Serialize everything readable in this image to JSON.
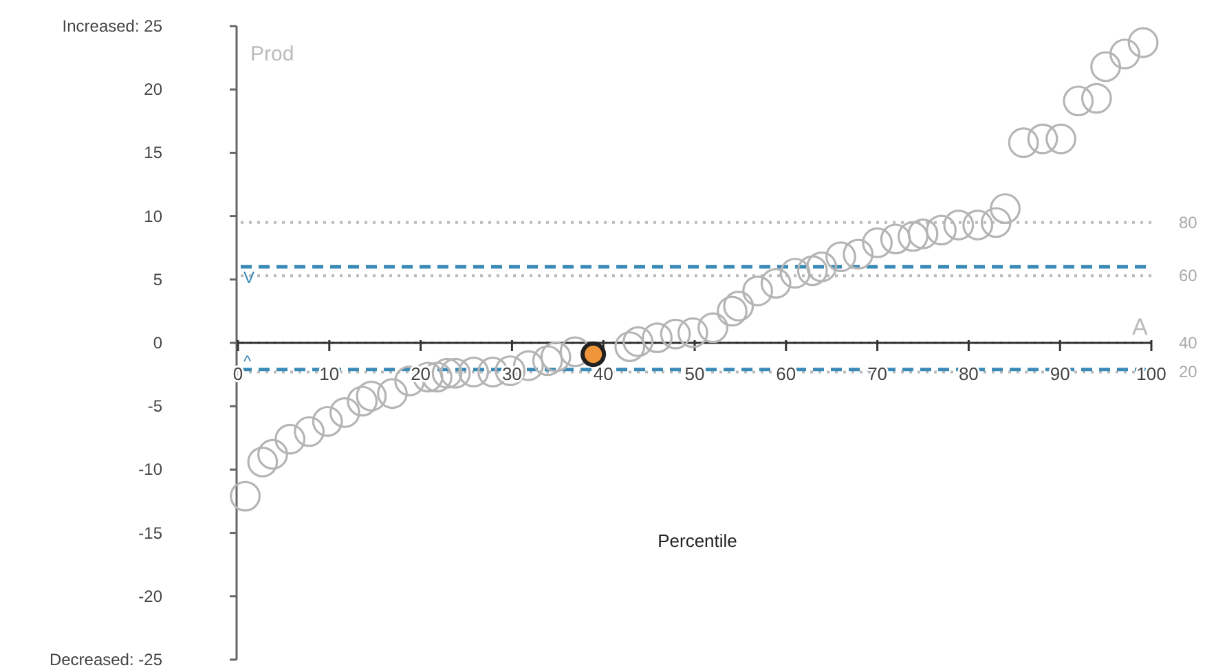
{
  "chart_data": {
    "type": "scatter",
    "xlabel": "Percentile",
    "annotations": [
      "Prod",
      "A",
      "80",
      "60",
      "40",
      "20"
    ],
    "xlim": [
      0,
      100
    ],
    "ylim": [
      -25,
      25
    ],
    "xticks": [
      0,
      10,
      20,
      30,
      40,
      50,
      60,
      70,
      80,
      90,
      100
    ],
    "yticks": [
      {
        "value": 25,
        "label": "Increased: 25"
      },
      20,
      15,
      10,
      5,
      0,
      -5,
      -10,
      -15,
      -20,
      {
        "value": -25,
        "label": "Decreased: -25"
      }
    ],
    "marker": "circle",
    "grid": false,
    "series": [
      {
        "color": "#b5b5b5",
        "x": [
          0.8,
          2.7,
          3.8,
          5.7,
          7.8,
          9.8,
          11.7,
          13.6,
          14.6,
          16.9,
          18.8,
          20.8,
          21.8,
          22.9,
          23.8,
          25.8,
          27.9,
          29.8,
          31.8,
          33.9,
          34.8,
          36.9,
          42.9,
          43.8,
          45.9,
          47.9,
          49.8,
          52.0,
          54.1,
          54.8,
          56.9,
          58.9,
          61.0,
          62.9,
          63.9,
          66.0,
          67.9,
          70.0,
          72.0,
          73.9,
          75.0,
          77.0,
          78.9,
          81.0,
          83.0,
          84.0,
          86.0,
          88.1,
          90.1,
          92.0,
          94.0,
          95.0,
          97.1,
          99.1
        ],
        "values": [
          -12.1,
          -9.4,
          -8.8,
          -7.6,
          -7.0,
          -6.2,
          -5.5,
          -4.6,
          -4.2,
          -4.0,
          -3.0,
          -2.7,
          -2.7,
          -2.4,
          -2.4,
          -2.3,
          -2.3,
          -2.2,
          -1.8,
          -1.4,
          -1.1,
          -0.7,
          -0.3,
          0.1,
          0.4,
          0.7,
          0.8,
          1.2,
          2.5,
          2.9,
          4.1,
          4.7,
          5.5,
          5.7,
          6.0,
          6.8,
          7.0,
          7.9,
          8.2,
          8.4,
          8.6,
          8.9,
          9.3,
          9.3,
          9.5,
          10.6,
          15.8,
          16.1,
          16.1,
          19.1,
          19.3,
          21.8,
          22.8,
          23.7
        ]
      },
      {
        "color": "#f0953a",
        "x": [
          38.9
        ],
        "values": [
          -0.9
        ]
      }
    ],
    "ref_lines": [
      {
        "axis": "y",
        "value": 9.5,
        "color": "#bbbbbb",
        "line_style": "dotted"
      },
      {
        "axis": "y",
        "value": 5.3,
        "color": "#bbbbbb",
        "line_style": "dotted"
      },
      {
        "axis": "y",
        "value": 0,
        "color": "#bbbbbb",
        "line_style": "dotted"
      },
      {
        "axis": "y",
        "value": -2.3,
        "color": "#bbbbbb",
        "line_style": "dotted"
      },
      {
        "axis": "y",
        "value": 6,
        "label": "V",
        "color": "#3a8ab8",
        "line_style": "dashed"
      },
      {
        "axis": "y",
        "value": -2.1,
        "label": "^",
        "color": "#3a8ab8",
        "line_style": "dashed"
      }
    ]
  }
}
